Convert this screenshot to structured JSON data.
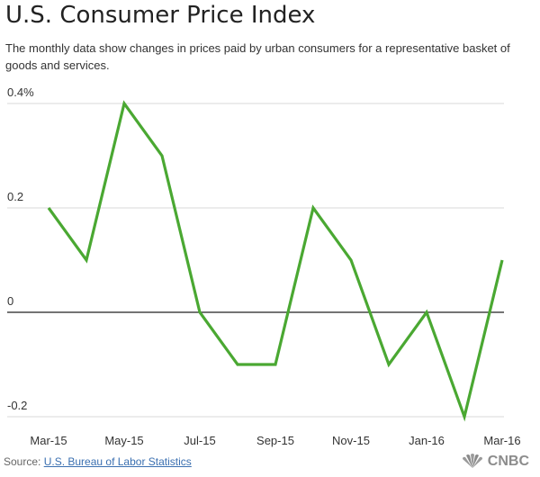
{
  "title": "U.S. Consumer Price Index",
  "subtitle": "The monthly data show changes in prices paid by urban consumers for a representative basket of goods and services.",
  "source": {
    "prefix": "Source: ",
    "link_text": "U.S. Bureau of Labor Statistics"
  },
  "brand": {
    "name": "CNBC",
    "icon": "peacock-icon"
  },
  "colors": {
    "line": "#4aa832",
    "grid": "#d9d9d9",
    "zero_line": "#222222",
    "link": "#3a6fb0"
  },
  "chart_data": {
    "type": "line",
    "title": "U.S. Consumer Price Index",
    "subtitle": "The monthly data show changes in prices paid by urban consumers for a representative basket of goods and services.",
    "x": [
      "Mar-15",
      "Apr-15",
      "May-15",
      "Jun-15",
      "Jul-15",
      "Aug-15",
      "Sep-15",
      "Oct-15",
      "Nov-15",
      "Dec-15",
      "Jan-16",
      "Feb-16",
      "Mar-16"
    ],
    "x_tick_labels": [
      "Mar-15",
      "May-15",
      "Jul-15",
      "Sep-15",
      "Nov-15",
      "Jan-16",
      "Mar-16"
    ],
    "values": [
      0.2,
      0.1,
      0.4,
      0.3,
      0.0,
      -0.1,
      -0.1,
      0.2,
      0.1,
      -0.1,
      0.0,
      -0.2,
      0.1
    ],
    "y_ticks": [
      0.4,
      0.2,
      0,
      -0.2
    ],
    "y_tick_labels": [
      "0.4%",
      "0.2",
      "0",
      "-0.2"
    ],
    "ylim": [
      -0.2,
      0.4
    ],
    "xlabel": "",
    "ylabel": "",
    "grid": true,
    "legend": "none"
  }
}
